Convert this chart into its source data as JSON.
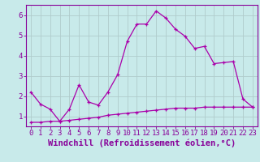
{
  "title": "",
  "xlabel": "Windchill (Refroidissement éolien,°C)",
  "ylabel": "",
  "background_color": "#c8eaea",
  "grid_color": "#b8d8d8",
  "line_color": "#aa00aa",
  "xlim": [
    -0.5,
    23.5
  ],
  "ylim": [
    0.5,
    6.5
  ],
  "yticks": [
    1,
    2,
    3,
    4,
    5,
    6
  ],
  "xticks": [
    0,
    1,
    2,
    3,
    4,
    5,
    6,
    7,
    8,
    9,
    10,
    11,
    12,
    13,
    14,
    15,
    16,
    17,
    18,
    19,
    20,
    21,
    22,
    23
  ],
  "series1_x": [
    0,
    1,
    2,
    3,
    4,
    5,
    6,
    7,
    8,
    9,
    10,
    11,
    12,
    13,
    14,
    15,
    16,
    17,
    18,
    19,
    20,
    21,
    22,
    23
  ],
  "series1_y": [
    2.2,
    1.6,
    1.35,
    0.75,
    1.35,
    2.55,
    1.7,
    1.55,
    2.2,
    3.05,
    4.7,
    5.55,
    5.55,
    6.2,
    5.85,
    5.3,
    4.95,
    4.35,
    4.45,
    3.6,
    3.65,
    3.7,
    1.85,
    1.45
  ],
  "series2_x": [
    0,
    1,
    2,
    3,
    4,
    5,
    6,
    7,
    8,
    9,
    10,
    11,
    12,
    13,
    14,
    15,
    16,
    17,
    18,
    19,
    20,
    21,
    22,
    23
  ],
  "series2_y": [
    0.7,
    0.7,
    0.75,
    0.75,
    0.8,
    0.85,
    0.9,
    0.95,
    1.05,
    1.1,
    1.15,
    1.2,
    1.25,
    1.3,
    1.35,
    1.4,
    1.4,
    1.4,
    1.45,
    1.45,
    1.45,
    1.45,
    1.45,
    1.45
  ],
  "font_color": "#880099",
  "tick_fontsize": 6.5,
  "label_fontsize": 7.5,
  "spine_color": "#880099"
}
